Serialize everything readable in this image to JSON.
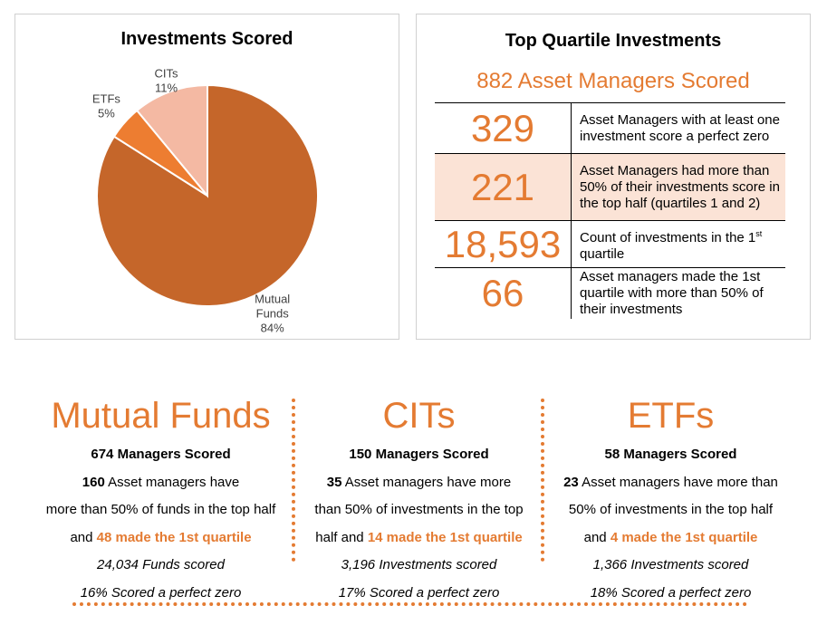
{
  "pie_panel": {
    "title": "Investments Scored"
  },
  "chart_data": {
    "type": "pie",
    "title": "Investments Scored",
    "slices": [
      {
        "label": "Mutual Funds",
        "value": 84,
        "display": "84%",
        "color": "#C5662A"
      },
      {
        "label": "ETFs",
        "value": 5,
        "display": "5%",
        "color": "#ED7D31"
      },
      {
        "label": "CITs",
        "value": 11,
        "display": "11%",
        "color": "#F4B9A3"
      }
    ]
  },
  "top_panel": {
    "title": "Top Quartile Investments",
    "subtitle": "882 Asset Managers Scored",
    "rows": [
      {
        "number": "329",
        "text": "Asset Managers with at least one investment score a perfect zero",
        "highlight": false
      },
      {
        "number": "221",
        "text": "Asset Managers had more than 50% of their investments score in the top half (quartiles 1 and 2)",
        "highlight": true
      },
      {
        "number": "18,593",
        "text_before": "Count of investments in the 1",
        "sup": "st",
        "text_after": " quartile",
        "highlight": false
      },
      {
        "number": "66",
        "text": "Asset managers made the 1st quartile with more than 50% of their investments",
        "highlight": false
      }
    ]
  },
  "sections": [
    {
      "title": "Mutual Funds",
      "managers": "674 Managers Scored",
      "count": "160",
      "line1_rest": " Asset managers have",
      "line2": "more than 50% of funds in the top half",
      "line3_prefix": "and ",
      "line3_highlight": "48 made the 1st quartile",
      "scored": "24,034 Funds scored",
      "zero": "16% Scored a perfect zero"
    },
    {
      "title": "CITs",
      "managers": "150 Managers Scored",
      "count": "35",
      "line1_rest": " Asset managers have more",
      "line2": "than 50% of investments in the top",
      "line3_prefix": "half and ",
      "line3_highlight": "14 made the 1st quartile",
      "scored": "3,196 Investments scored",
      "zero": "17% Scored a perfect zero"
    },
    {
      "title": "ETFs",
      "managers": "58 Managers Scored",
      "count": "23",
      "line1_rest": " Asset managers have more than",
      "line2": "50% of investments in the top half",
      "line3_prefix": "and ",
      "line3_highlight": "4 made the 1st quartile",
      "scored": "1,366 Investments scored",
      "zero": "18% Scored a perfect zero"
    }
  ]
}
